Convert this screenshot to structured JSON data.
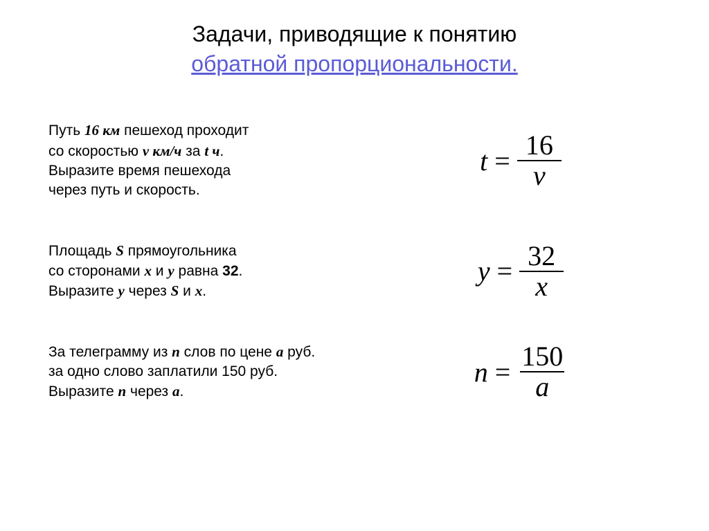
{
  "title": {
    "line1": "Задачи, приводящие  к  понятию",
    "line2": "обратной  пропорциональности."
  },
  "problems": [
    {
      "text_html": "Путь  <span class='ivar'>16 км</span>  пешеход  проходит<br>со скоростью <span class='ivar'>v км/ч</span>  за  <span class='ivar'>t ч</span>.<br>Выразите время пешехода<br>через  путь и скорость.",
      "formula": {
        "lhs": "t",
        "num": "16",
        "den": "v"
      }
    },
    {
      "text_html": "Площадь <span class='ivar'>S</span>  прямоугольника<br>со сторонами  <span class='ivar'>x</span>  и  <span class='ivar'>y</span>   равна  <strong>32</strong>.<br>Выразите  <span class='ivar'>y</span>  через  <span class='ivar'>S</span>  и  <span class='ivar'>x</span>.",
      "formula": {
        "lhs": "y",
        "num": "32",
        "den": "x"
      }
    },
    {
      "text_html": "За телеграмму из <span class='ivar'>n</span> слов по цене <span class='ivar'>a</span> руб.<br>за одно слово заплатили 150 руб.<br>Выразите <span class='ivar'>n</span> через <span class='ivar'>a</span>.",
      "formula": {
        "lhs": "n",
        "num": "150",
        "den": "a"
      }
    }
  ],
  "style": {
    "title_fontsize": 32,
    "problem_fontsize": 21,
    "formula_fontsize": 40,
    "link_color": "#5b5bd7",
    "text_color": "#000000",
    "background": "#ffffff",
    "slide_width": 1024,
    "slide_height": 767
  }
}
